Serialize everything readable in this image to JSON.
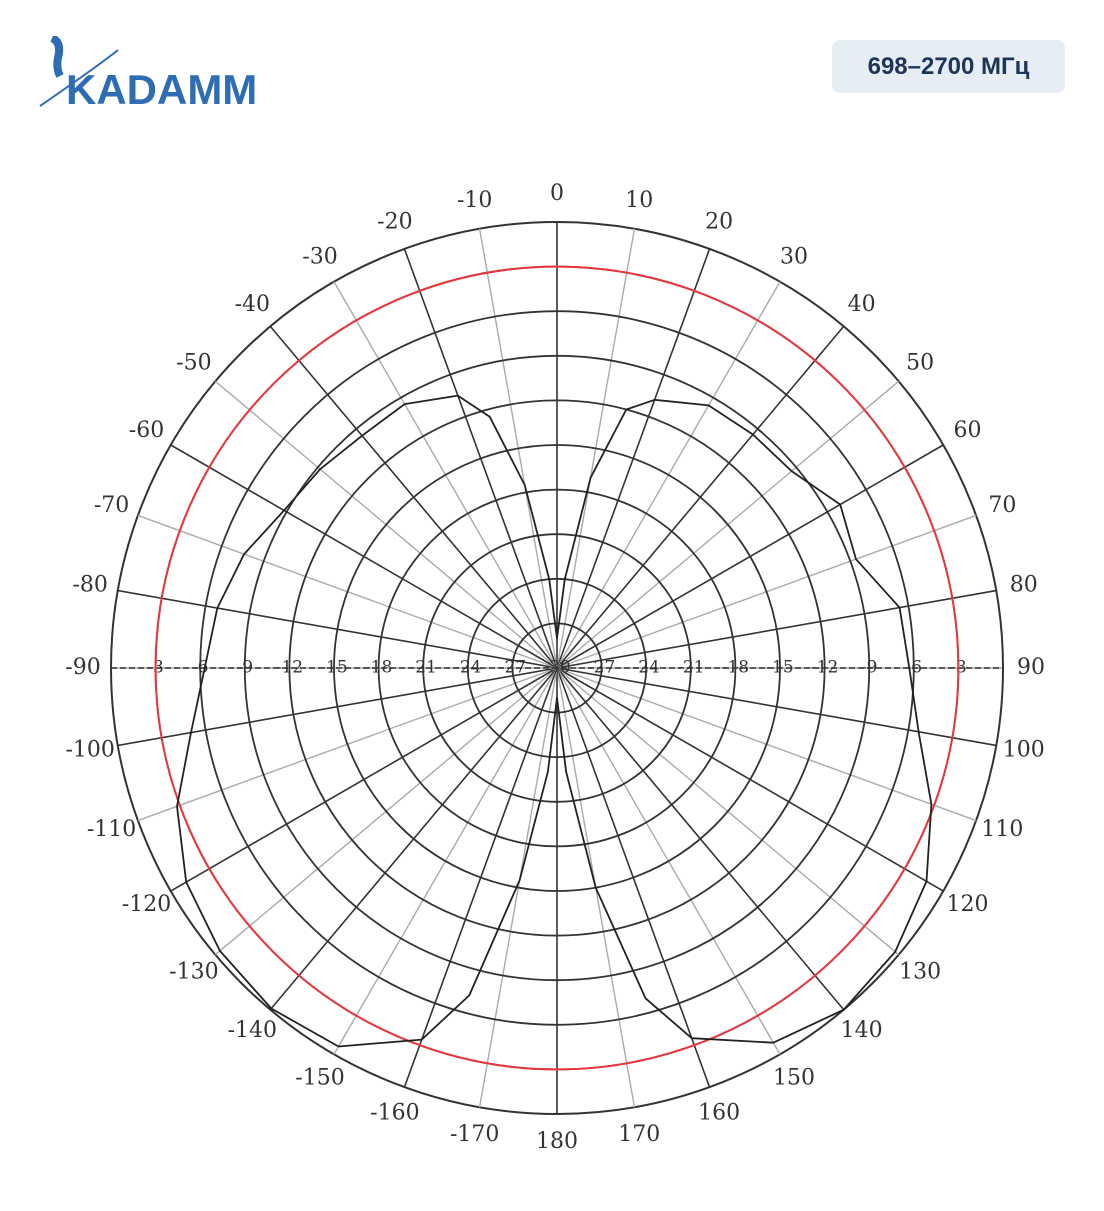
{
  "header": {
    "logo": "KADAMM",
    "badge": "698–2700 МГц"
  },
  "chart_data": {
    "type": "polar",
    "rlim": [
      -30,
      0
    ],
    "rticks": [
      -3,
      -6,
      -9,
      -12,
      -15,
      -18,
      -21,
      -24,
      -27,
      -30
    ],
    "thetaticks": [
      0,
      10,
      20,
      30,
      40,
      50,
      60,
      70,
      80,
      90,
      100,
      110,
      120,
      130,
      140,
      150,
      160,
      170,
      180,
      -170,
      -160,
      -150,
      -140,
      -130,
      -120,
      -110,
      -100,
      -90,
      -80,
      -70,
      -60,
      -50,
      -40,
      -30,
      -20,
      -10
    ],
    "reference_line": {
      "value": -3,
      "color": "#e8383d"
    },
    "series": [
      {
        "color": "#222222",
        "theta": [
          0,
          5,
          10,
          15,
          20,
          30,
          40,
          50,
          60,
          70,
          80,
          90,
          100,
          110,
          120,
          130,
          140,
          150,
          160,
          165,
          170,
          175,
          180,
          -175,
          -170,
          -165,
          -160,
          -150,
          -140,
          -130,
          -120,
          -110,
          -100,
          -90,
          -80,
          -70,
          -60,
          -50,
          -40,
          -30,
          -20,
          -15,
          -10,
          -5
        ],
        "values": [
          -28,
          -24,
          -17,
          -12,
          -10.8,
          -9.6,
          -9.5,
          -9.4,
          -8,
          -8.6,
          -6.6,
          -6.3,
          -5.3,
          -3.2,
          -1.3,
          -0.3,
          0,
          -0.9,
          -3.5,
          -7,
          -15,
          -23,
          -28,
          -23,
          -15.5,
          -7.2,
          -3.4,
          -0.6,
          -0.1,
          -0.4,
          -1.2,
          -2.8,
          -5,
          -6.3,
          -6.8,
          -7.6,
          -8.8,
          -9.2,
          -9.6,
          -9.5,
          -10.5,
          -12.5,
          -17.5,
          -24
        ]
      }
    ]
  }
}
